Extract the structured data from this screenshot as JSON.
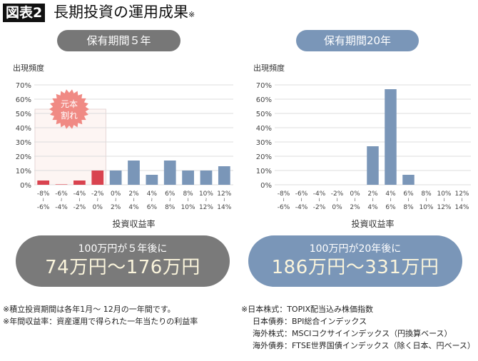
{
  "figure_label": "図表2",
  "title": "長期投資の運用成果",
  "title_note": "※",
  "colors": {
    "loss": "#d9434f",
    "gain": "#7a96b8",
    "pill_left": "#777777",
    "pill_right": "#7a96b8",
    "result_left": "#7a7a7a",
    "result_right": "#7a96b8",
    "burst": "#f08a84"
  },
  "panels": [
    {
      "header": "保有期間５年",
      "result_sub": "100万円が５年後に",
      "result_main": "74万円〜176万円"
    },
    {
      "header": "保有期間20年",
      "result_sub": "100万円が20年後に",
      "result_main": "186万円〜331万円"
    }
  ],
  "chart_data": [
    {
      "type": "bar",
      "title": "保有期間５年",
      "ylabel": "出現頻度",
      "xlabel": "投資収益率",
      "ylim": [
        0,
        70
      ],
      "yticks": [
        "0%",
        "10%",
        "20%",
        "30%",
        "40%",
        "50%",
        "60%",
        "70%"
      ],
      "grid": true,
      "categories": [
        [
          "-8%",
          "-6%"
        ],
        [
          "-6%",
          "-4%"
        ],
        [
          "-4%",
          "-2%"
        ],
        [
          "-2%",
          "0%"
        ],
        [
          "0%",
          "2%"
        ],
        [
          "2%",
          "4%"
        ],
        [
          "4%",
          "6%"
        ],
        [
          "6%",
          "8%"
        ],
        [
          "8%",
          "10%"
        ],
        [
          "10%",
          "12%"
        ],
        [
          "12%",
          "14%"
        ]
      ],
      "values": [
        3,
        0.3,
        3,
        10,
        10,
        17,
        7,
        17,
        10,
        10,
        13
      ],
      "annotation": "元本割れ",
      "annotation_lines": [
        "元本",
        "割れ"
      ]
    },
    {
      "type": "bar",
      "title": "保有期間20年",
      "ylabel": "出現頻度",
      "xlabel": "投資収益率",
      "ylim": [
        0,
        70
      ],
      "yticks": [
        "0%",
        "10%",
        "20%",
        "30%",
        "40%",
        "50%",
        "60%",
        "70%"
      ],
      "grid": true,
      "categories": [
        [
          "-8%",
          "-6%"
        ],
        [
          "-6%",
          "-4%"
        ],
        [
          "-4%",
          "-2%"
        ],
        [
          "-2%",
          "0%"
        ],
        [
          "0%",
          "2%"
        ],
        [
          "2%",
          "4%"
        ],
        [
          "4%",
          "6%"
        ],
        [
          "6%",
          "8%"
        ],
        [
          "8%",
          "10%"
        ],
        [
          "10%",
          "12%"
        ],
        [
          "12%",
          "14%"
        ]
      ],
      "values": [
        0,
        0,
        0,
        0,
        0,
        27,
        67,
        7,
        0,
        0,
        0
      ]
    }
  ],
  "range_sep": "〜",
  "notes_left": [
    "※積立投資期間は各年1月〜 12月の一年間です。",
    "※年間収益率：資産運用で得られた一年当たりの利益率"
  ],
  "notes_right": [
    "※日本株式：TOPIX配当込み株価指数",
    "日本債券：BPI総合インデックス",
    "海外株式：MSCIコクサイインデックス（円換算ベース）",
    "海外債券：FTSE世界国債インデックス（除く日本、円ベース）"
  ]
}
